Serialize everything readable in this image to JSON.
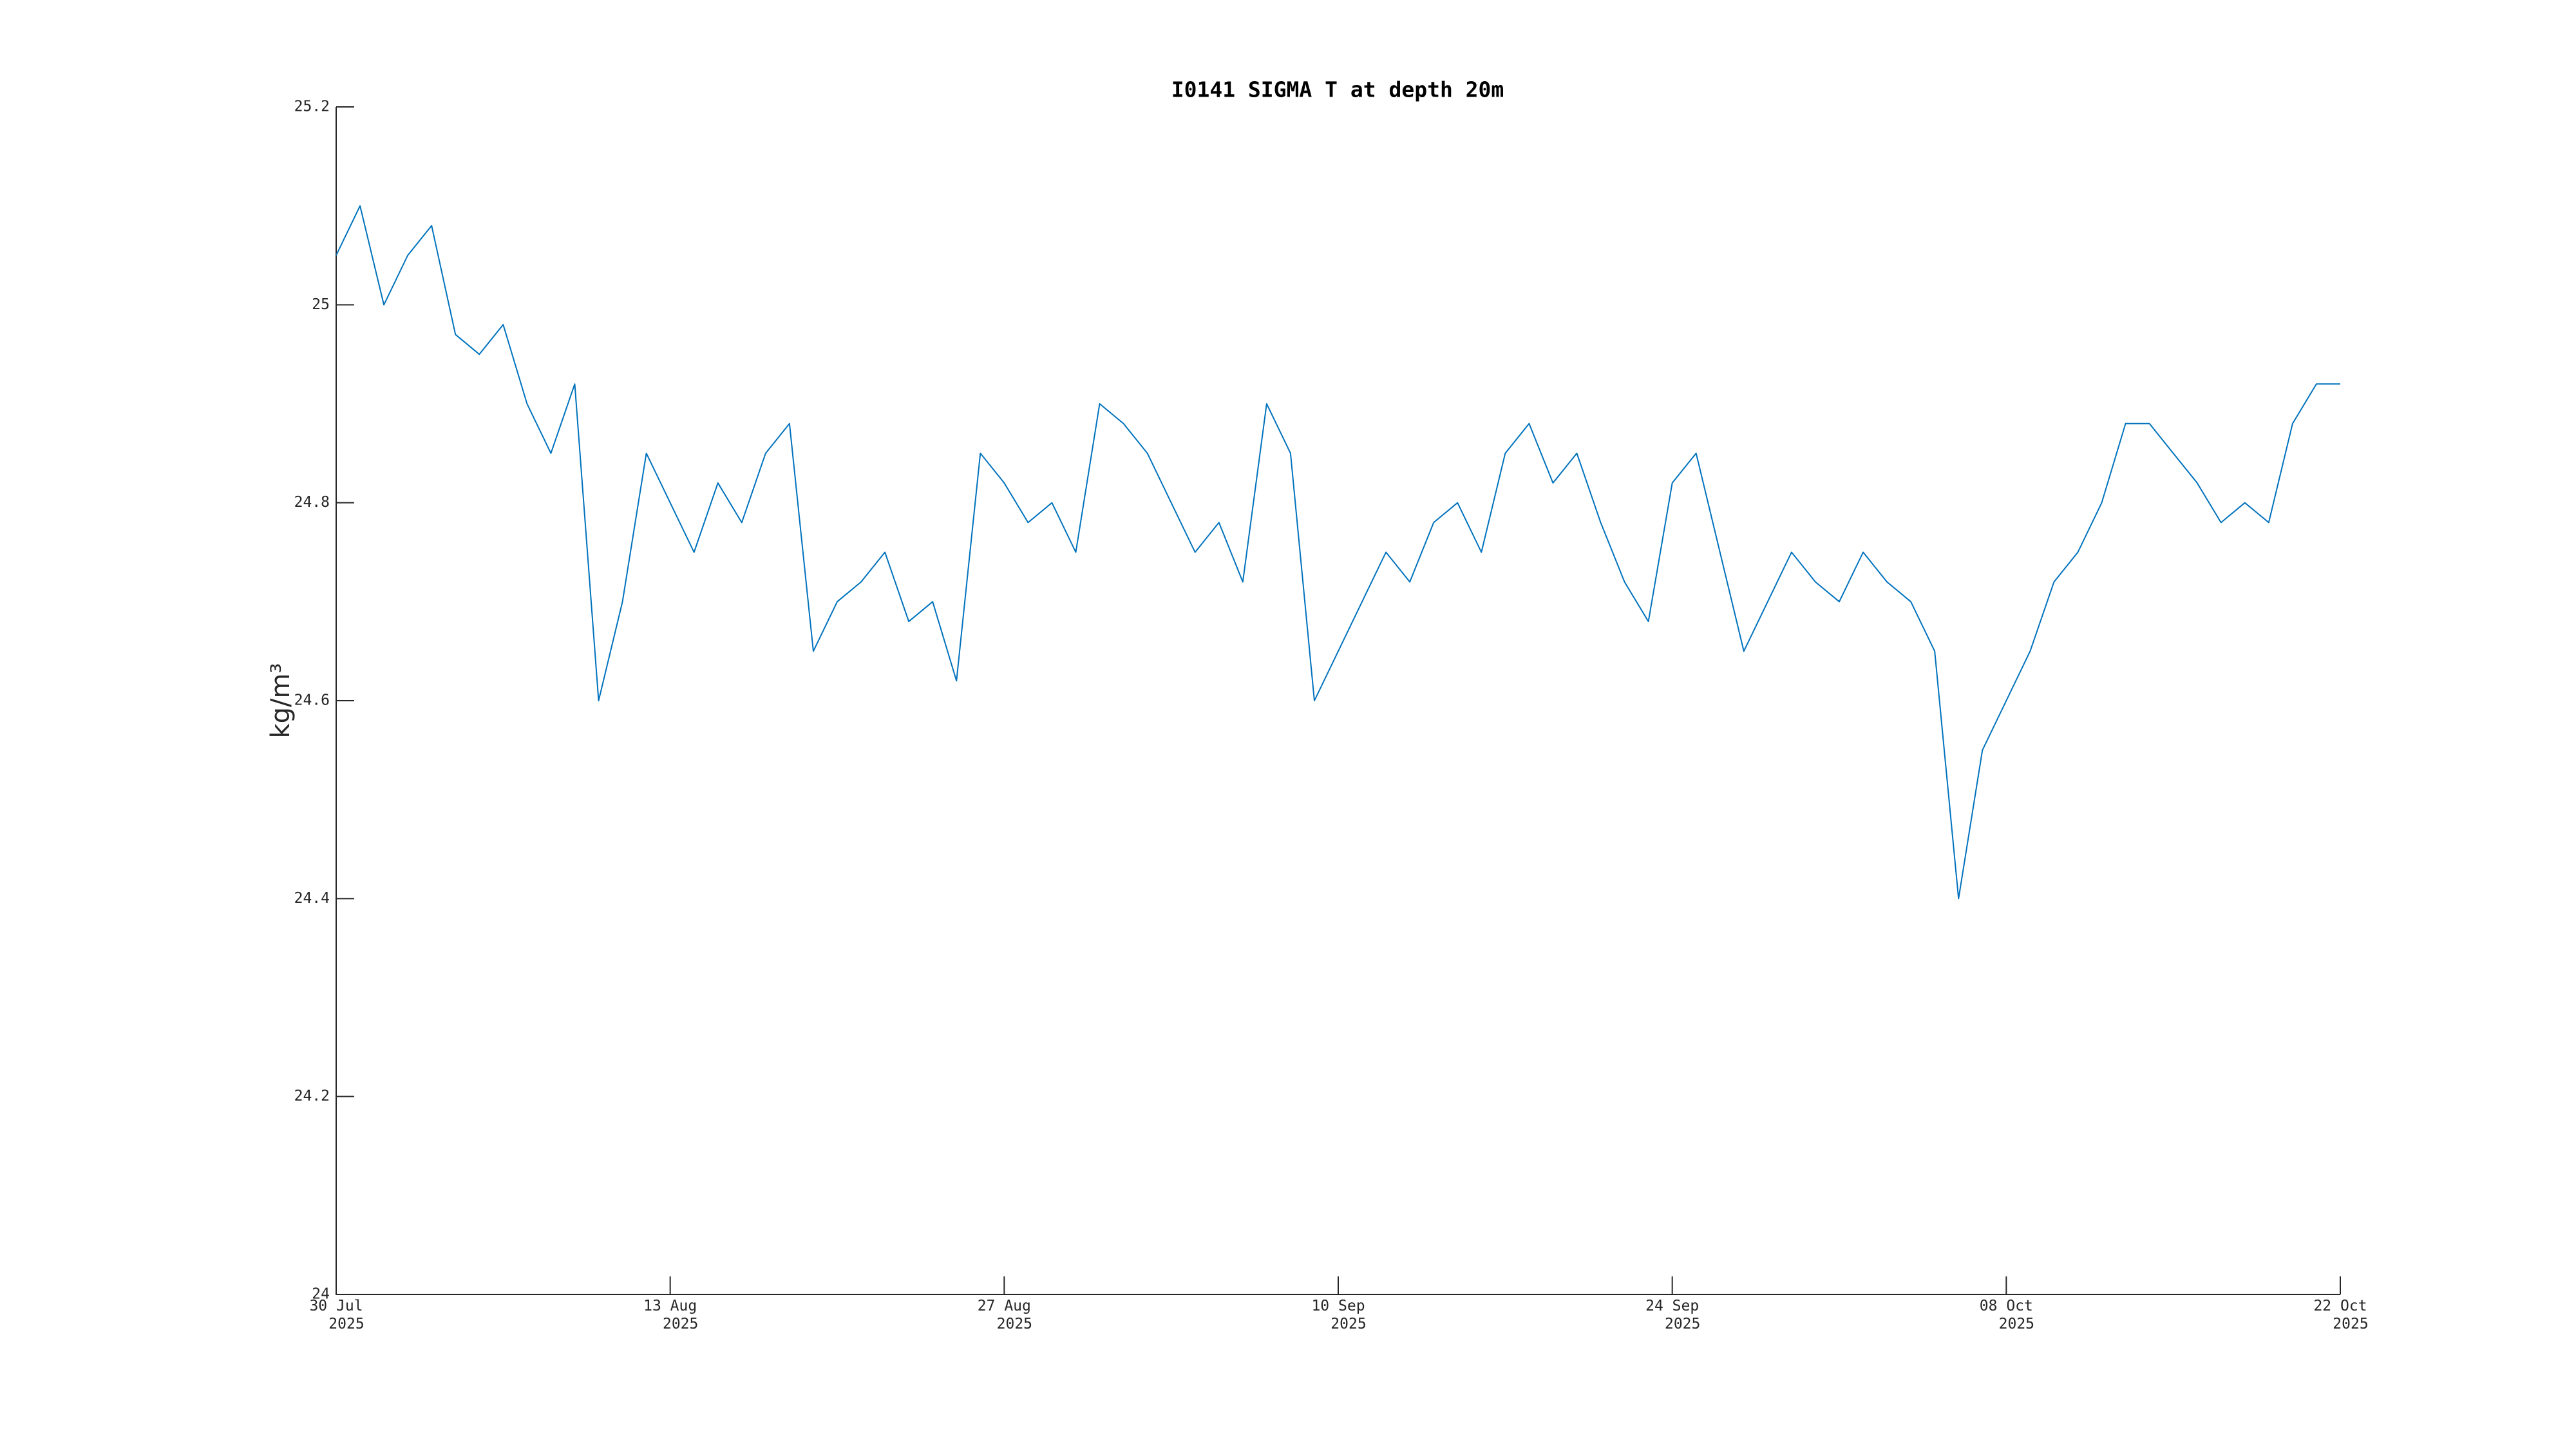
{
  "chart_data": {
    "type": "line",
    "title": "I0141 SIGMA T at depth 20m",
    "ylabel": "kg/m³",
    "x": [
      "2025-07-30",
      "2025-07-31",
      "2025-08-01",
      "2025-08-02",
      "2025-08-03",
      "2025-08-04",
      "2025-08-05",
      "2025-08-06",
      "2025-08-07",
      "2025-08-08",
      "2025-08-09",
      "2025-08-10",
      "2025-08-11",
      "2025-08-12",
      "2025-08-13",
      "2025-08-14",
      "2025-08-15",
      "2025-08-16",
      "2025-08-17",
      "2025-08-18",
      "2025-08-19",
      "2025-08-20",
      "2025-08-21",
      "2025-08-22",
      "2025-08-23",
      "2025-08-24",
      "2025-08-25",
      "2025-08-26",
      "2025-08-27",
      "2025-08-28",
      "2025-08-29",
      "2025-08-30",
      "2025-08-31",
      "2025-09-01",
      "2025-09-02",
      "2025-09-03",
      "2025-09-04",
      "2025-09-05",
      "2025-09-06",
      "2025-09-07",
      "2025-09-08",
      "2025-09-09",
      "2025-09-10",
      "2025-09-11",
      "2025-09-12",
      "2025-09-13",
      "2025-09-14",
      "2025-09-15",
      "2025-09-16",
      "2025-09-17",
      "2025-09-18",
      "2025-09-19",
      "2025-09-20",
      "2025-09-21",
      "2025-09-22",
      "2025-09-23",
      "2025-09-24",
      "2025-09-25",
      "2025-09-26",
      "2025-09-27",
      "2025-09-28",
      "2025-09-29",
      "2025-09-30",
      "2025-10-01",
      "2025-10-02",
      "2025-10-03",
      "2025-10-04",
      "2025-10-05",
      "2025-10-06",
      "2025-10-07",
      "2025-10-08",
      "2025-10-09",
      "2025-10-10",
      "2025-10-11",
      "2025-10-12",
      "2025-10-13",
      "2025-10-14",
      "2025-10-15",
      "2025-10-16",
      "2025-10-17",
      "2025-10-18",
      "2025-10-19",
      "2025-10-20",
      "2025-10-21",
      "2025-10-22"
    ],
    "series": [
      {
        "color": "#0072bd",
        "values": [
          25.05,
          25.1,
          25.0,
          25.05,
          25.08,
          24.97,
          24.95,
          24.98,
          24.9,
          24.85,
          24.92,
          24.6,
          24.7,
          24.85,
          24.8,
          24.75,
          24.82,
          24.78,
          24.85,
          24.88,
          24.65,
          24.7,
          24.72,
          24.75,
          24.68,
          24.7,
          24.62,
          24.85,
          24.82,
          24.78,
          24.8,
          24.75,
          24.9,
          24.88,
          24.85,
          24.8,
          24.75,
          24.78,
          24.72,
          24.9,
          24.85,
          24.6,
          24.65,
          24.7,
          24.75,
          24.72,
          24.78,
          24.8,
          24.75,
          24.85,
          24.88,
          24.82,
          24.85,
          24.78,
          24.72,
          24.68,
          24.82,
          24.85,
          24.75,
          24.65,
          24.7,
          24.75,
          24.72,
          24.7,
          24.75,
          24.72,
          24.7,
          24.65,
          24.4,
          24.55,
          24.6,
          24.65,
          24.72,
          24.75,
          24.8,
          24.88,
          24.88,
          24.85,
          24.82,
          24.78,
          24.8,
          24.78,
          24.88,
          24.92,
          24.92
        ]
      }
    ],
    "xlim": [
      "2025-07-30",
      "2025-10-22"
    ],
    "xticks": [
      {
        "value": "2025-07-30",
        "label": [
          "30 Jul",
          "2025"
        ]
      },
      {
        "value": "2025-08-13",
        "label": [
          "13 Aug",
          "2025"
        ]
      },
      {
        "value": "2025-08-27",
        "label": [
          "27 Aug",
          "2025"
        ]
      },
      {
        "value": "2025-09-10",
        "label": [
          "10 Sep",
          "2025"
        ]
      },
      {
        "value": "2025-09-24",
        "label": [
          "24 Sep",
          "2025"
        ]
      },
      {
        "value": "2025-10-08",
        "label": [
          "08 Oct",
          "2025"
        ]
      },
      {
        "value": "2025-10-22",
        "label": [
          "22 Oct",
          "2025"
        ]
      }
    ],
    "ylim": [
      24,
      25.2
    ],
    "yticks": [
      24,
      24.2,
      24.4,
      24.6,
      24.8,
      25,
      25.2
    ]
  }
}
